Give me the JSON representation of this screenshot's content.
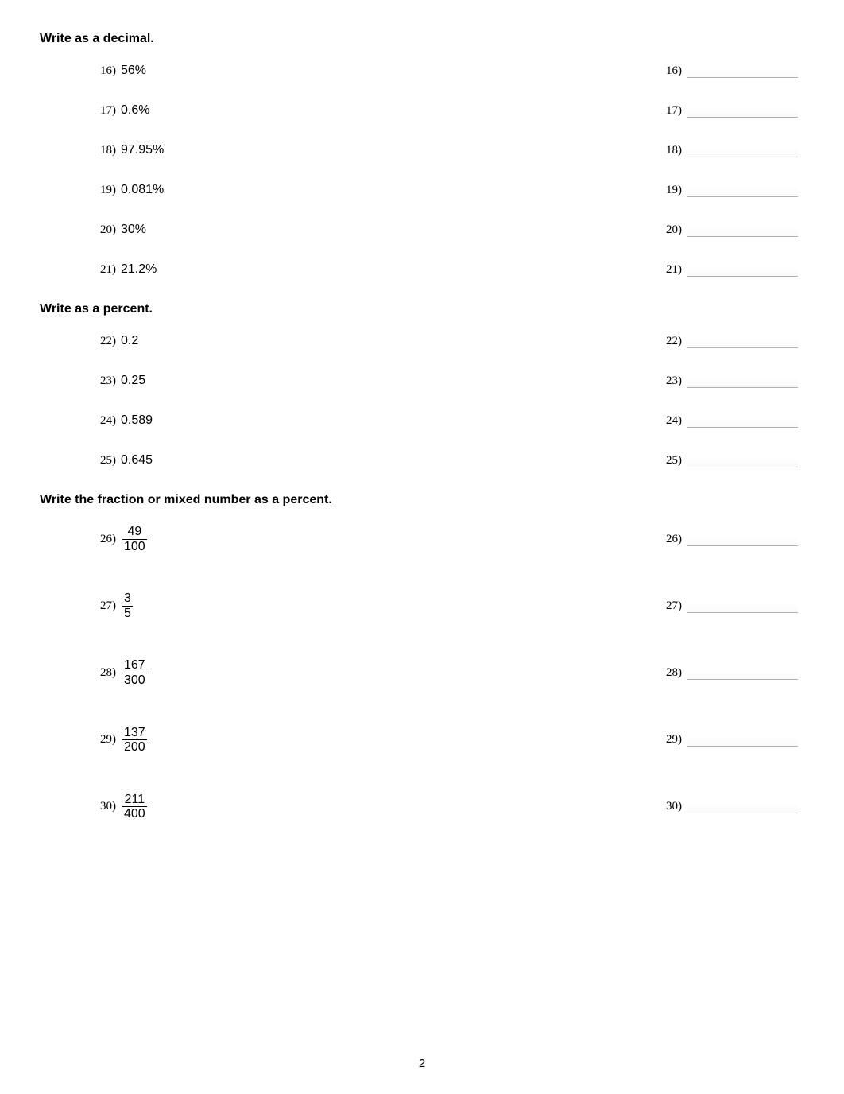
{
  "sections": [
    {
      "heading": "Write as a decimal.",
      "first": true,
      "questions": [
        {
          "n": "16)",
          "text": "56%",
          "an": "16)"
        },
        {
          "n": "17)",
          "text": "0.6%",
          "an": "17)"
        },
        {
          "n": "18)",
          "text": "97.95%",
          "an": "18)"
        },
        {
          "n": "19)",
          "text": "0.081%",
          "an": "19)"
        },
        {
          "n": "20)",
          "text": "30%",
          "an": "20)"
        },
        {
          "n": "21)",
          "text": "21.2%",
          "an": "21)"
        }
      ]
    },
    {
      "heading": "Write as a percent.",
      "first": false,
      "questions": [
        {
          "n": "22)",
          "text": "0.2",
          "an": "22)"
        },
        {
          "n": "23)",
          "text": "0.25",
          "an": "23)"
        },
        {
          "n": "24)",
          "text": "0.589",
          "an": "24)"
        },
        {
          "n": "25)",
          "text": "0.645",
          "an": "25)"
        }
      ]
    },
    {
      "heading": "Write the fraction or mixed number as a percent.",
      "first": false,
      "fraction": true,
      "questions": [
        {
          "n": "26)",
          "num": "49",
          "den": "100",
          "an": "26)"
        },
        {
          "n": "27)",
          "num": "3",
          "den": "5",
          "an": "27)"
        },
        {
          "n": "28)",
          "num": "167",
          "den": "300",
          "an": "28)"
        },
        {
          "n": "29)",
          "num": "137",
          "den": "200",
          "an": "29)"
        },
        {
          "n": "30)",
          "num": "211",
          "den": "400",
          "an": "30)"
        }
      ]
    }
  ],
  "page_number": "2"
}
